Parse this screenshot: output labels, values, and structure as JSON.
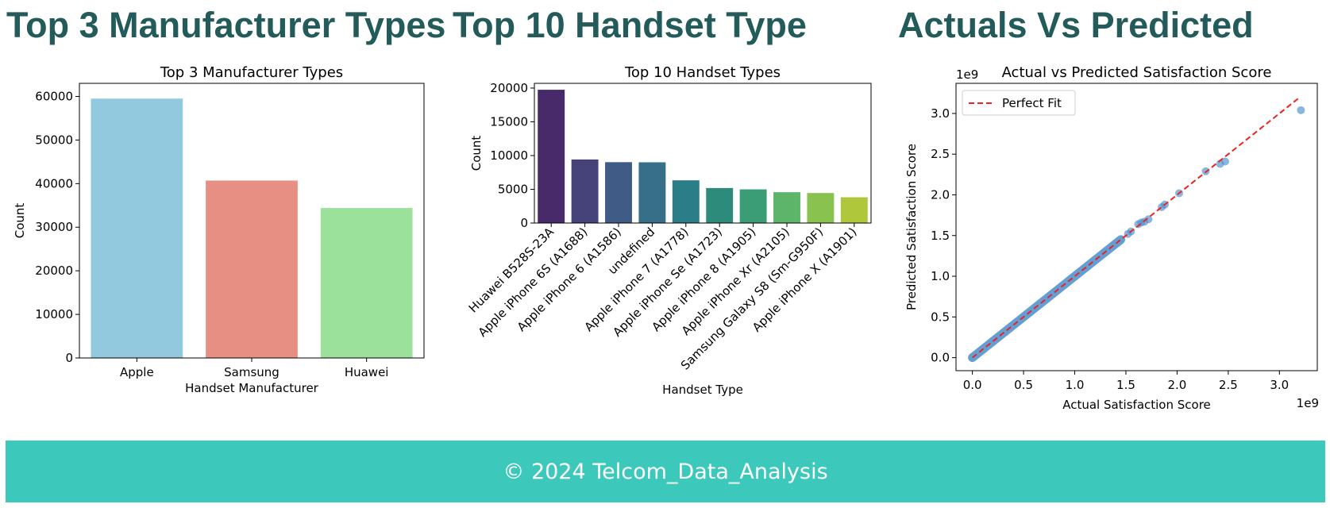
{
  "headings": {
    "left": "Top 3 Manufacturer Types",
    "middle": "Top 10 Handset Type",
    "right": "Actuals Vs Predicted"
  },
  "footer": {
    "text": "© 2024 Telcom_Data_Analysis"
  },
  "chart_data": [
    {
      "type": "bar",
      "title": "Top 3 Manufacturer Types",
      "xlabel": "Handset Manufacturer",
      "ylabel": "Count",
      "categories": [
        "Apple",
        "Samsung",
        "Huawei"
      ],
      "values": [
        59500,
        40700,
        34400
      ],
      "colors": [
        "#92c9df",
        "#e88f84",
        "#9be19b"
      ],
      "ylim": [
        0,
        63000
      ],
      "yticks": [
        0,
        10000,
        20000,
        30000,
        40000,
        50000,
        60000
      ],
      "grid": false
    },
    {
      "type": "bar",
      "title": "Top 10 Handset Types",
      "xlabel": "Handset Type",
      "ylabel": "Count",
      "categories": [
        "Huawei B528S-23A",
        "Apple iPhone 6S (A1688)",
        "Apple iPhone 6 (A1586)",
        "undefined",
        "Apple iPhone 7 (A1778)",
        "Apple iPhone Se (A1723)",
        "Apple iPhone 8 (A1905)",
        "Apple iPhone Xr (A2105)",
        "Samsung Galaxy S8 (Sm-G950F)",
        "Apple iPhone X (A1901)"
      ],
      "values": [
        19750,
        9420,
        9020,
        9000,
        6330,
        5190,
        4990,
        4570,
        4450,
        3820
      ],
      "colors": [
        "#482a6b",
        "#45437a",
        "#405b85",
        "#366f87",
        "#2b7e87",
        "#2d8b7c",
        "#3b9d75",
        "#5db56a",
        "#8ac250",
        "#aec73b"
      ],
      "ylim": [
        0,
        20700
      ],
      "yticks": [
        0,
        5000,
        10000,
        15000,
        20000
      ],
      "grid": false
    },
    {
      "type": "scatter",
      "title": "Actual vs Predicted Satisfaction Score",
      "xlabel": "Actual Satisfaction Score",
      "ylabel": "Predicted Satisfaction Score",
      "x_offset_label": "1e9",
      "y_offset_label": "1e9",
      "xlim": [
        -0.16,
        3.37
      ],
      "ylim": [
        -0.16,
        3.37
      ],
      "xticks": [
        0.0,
        0.5,
        1.0,
        1.5,
        2.0,
        2.5,
        3.0
      ],
      "yticks": [
        0.0,
        0.5,
        1.0,
        1.5,
        2.0,
        2.5,
        3.0
      ],
      "point_color": "#4a8fcd",
      "line": {
        "name": "Perfect Fit",
        "color": "#ee2222",
        "style": "dashed",
        "from": [
          0.0,
          0.0
        ],
        "to": [
          3.2,
          3.2
        ]
      },
      "legend": "upper-left",
      "dense_range": [
        0.0,
        1.45
      ],
      "points": [
        [
          1.52,
          1.52
        ],
        [
          1.55,
          1.55
        ],
        [
          1.62,
          1.64
        ],
        [
          1.65,
          1.66
        ],
        [
          1.68,
          1.67
        ],
        [
          1.72,
          1.7
        ],
        [
          1.85,
          1.85
        ],
        [
          1.88,
          1.88
        ],
        [
          2.02,
          2.02
        ],
        [
          2.28,
          2.29
        ],
        [
          2.42,
          2.38
        ],
        [
          2.47,
          2.41
        ],
        [
          3.21,
          3.04
        ]
      ]
    }
  ]
}
